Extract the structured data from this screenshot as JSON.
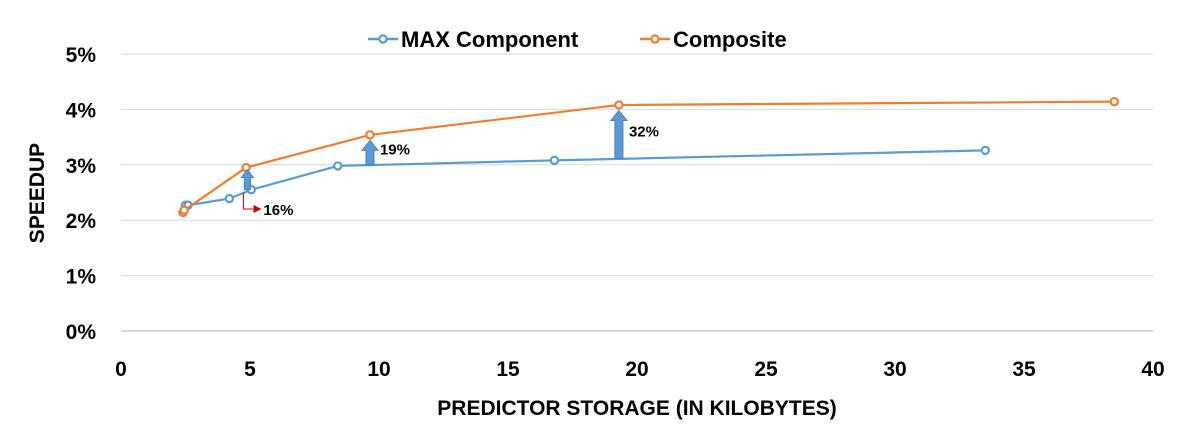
{
  "chart_data": {
    "type": "line",
    "title": "",
    "xlabel": "PREDICTOR STORAGE (IN KILOBYTES)",
    "ylabel": "SPEEDUP",
    "xlim": [
      0,
      40
    ],
    "ylim": [
      0,
      5
    ],
    "x_ticks": [
      0,
      5,
      10,
      15,
      20,
      25,
      30,
      35,
      40
    ],
    "y_ticks": [
      0,
      1,
      2,
      3,
      4,
      5
    ],
    "x_tick_labels": [
      "0",
      "5",
      "10",
      "15",
      "20",
      "25",
      "30",
      "35",
      "40"
    ],
    "y_tick_labels": [
      "0%",
      "1%",
      "2%",
      "3%",
      "4%",
      "5%"
    ],
    "grid": "horizontal",
    "legend_position": "top",
    "series": [
      {
        "name": "MAX Component",
        "color": "#5b9bd5",
        "points": [
          [
            2.5,
            2.27
          ],
          [
            2.6,
            2.27
          ],
          [
            4.2,
            2.39
          ],
          [
            5.05,
            2.55
          ],
          [
            8.4,
            2.98
          ],
          [
            16.8,
            3.08
          ],
          [
            33.5,
            3.26
          ]
        ]
      },
      {
        "name": "Composite",
        "color": "#ed7d31",
        "points": [
          [
            2.4,
            2.14
          ],
          [
            2.45,
            2.18
          ],
          [
            4.85,
            2.95
          ],
          [
            9.65,
            3.54
          ],
          [
            19.3,
            4.08
          ],
          [
            38.5,
            4.14
          ]
        ]
      }
    ],
    "annotations": [
      {
        "text": "16%",
        "color": "#cc0000",
        "kind": "bracket-arrow",
        "x": 4.9,
        "y_from": 2.55,
        "y_to": 2.22
      },
      {
        "text": "19%",
        "color": "#4a7ebb",
        "kind": "up-arrow",
        "x": 9.65,
        "y_from": 3.0,
        "y_to": 3.44
      },
      {
        "text": "32%",
        "color": "#4a7ebb",
        "kind": "up-arrow",
        "x": 19.3,
        "y_from": 3.12,
        "y_to": 3.98
      }
    ]
  }
}
